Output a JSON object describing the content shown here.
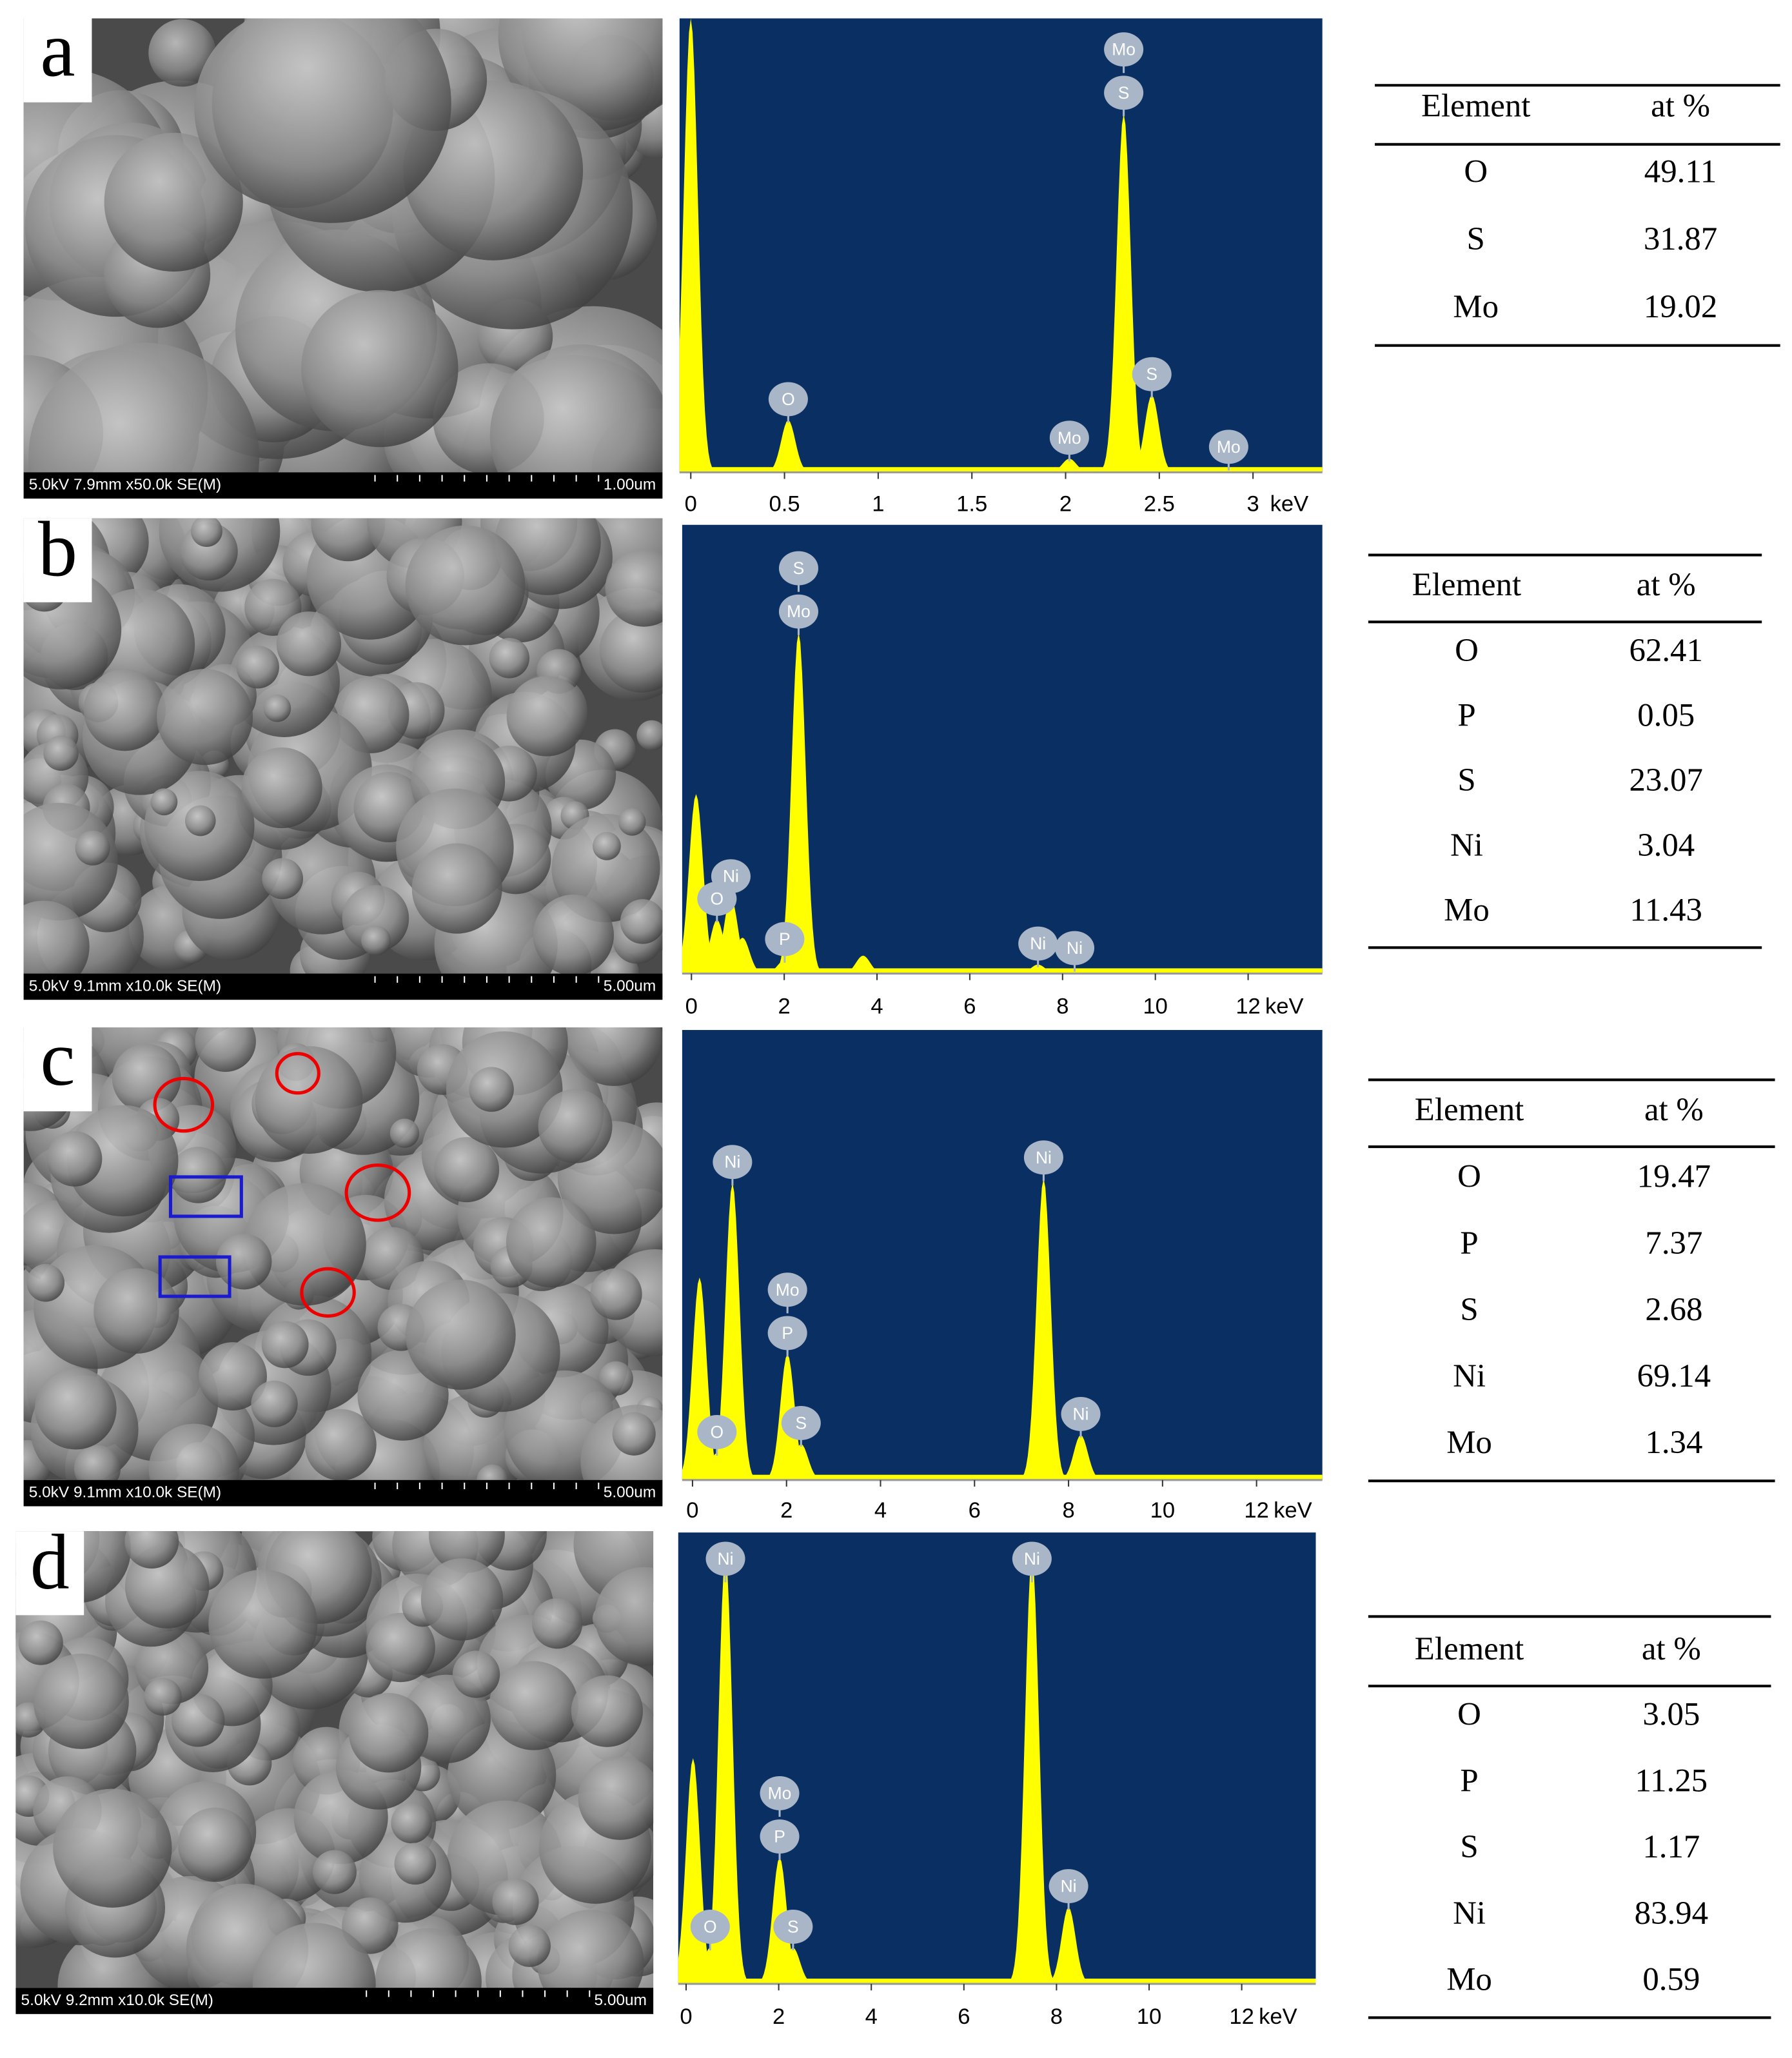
{
  "panels": [
    {
      "label": "a",
      "sem": {
        "info": "5.0kV 7.9mm x50.0k SE(M)",
        "scale": "1.00um"
      },
      "spectrum": {
        "type": "line",
        "xlim": [
          -0.06,
          3.37
        ],
        "ylim": [
          0,
          100
        ],
        "xticks": [
          0,
          0.5,
          1,
          1.5,
          2,
          2.5,
          3
        ],
        "x_unit": "keV",
        "peaks": [
          {
            "x": 0.0,
            "y": 100
          },
          {
            "x": 0.52,
            "y": 11.5,
            "labels": [
              "O"
            ]
          },
          {
            "x": 2.02,
            "y": 3,
            "labels": [
              "Mo"
            ]
          },
          {
            "x": 2.31,
            "y": 79,
            "labels": [
              "Mo",
              "S"
            ]
          },
          {
            "x": 2.46,
            "y": 17,
            "labels": [
              "S"
            ]
          },
          {
            "x": 2.87,
            "y": 1,
            "labels": [
              "Mo"
            ]
          }
        ]
      },
      "table": {
        "header": [
          "Element",
          "at %"
        ],
        "rows": [
          [
            "O",
            "49.11"
          ],
          [
            "S",
            "31.87"
          ],
          [
            "Mo",
            "19.02"
          ]
        ]
      }
    },
    {
      "label": "b",
      "sem": {
        "info": "5.0kV 9.1mm x10.0k SE(M)",
        "scale": "5.00um"
      },
      "spectrum": {
        "type": "line",
        "xlim": [
          -0.2,
          13.6
        ],
        "ylim": [
          0,
          100
        ],
        "xticks": [
          0,
          2,
          4,
          6,
          8,
          10,
          12
        ],
        "x_unit": "keV",
        "peaks": [
          {
            "x": 0.1,
            "y": 40
          },
          {
            "x": 0.55,
            "y": 12,
            "labels": [
              "O"
            ]
          },
          {
            "x": 0.85,
            "y": 17,
            "labels": [
              "Ni"
            ]
          },
          {
            "x": 1.1,
            "y": 8
          },
          {
            "x": 2.01,
            "y": 3,
            "labels": [
              "P"
            ]
          },
          {
            "x": 2.31,
            "y": 76,
            "labels": [
              "S",
              "Mo"
            ]
          },
          {
            "x": 3.7,
            "y": 4
          },
          {
            "x": 7.47,
            "y": 2,
            "labels": [
              "Ni"
            ]
          },
          {
            "x": 8.26,
            "y": 1,
            "labels": [
              "Ni"
            ]
          }
        ]
      },
      "table": {
        "header": [
          "Element",
          "at %"
        ],
        "rows": [
          [
            "O",
            "62.41"
          ],
          [
            "P",
            "0.05"
          ],
          [
            "S",
            "23.07"
          ],
          [
            "Ni",
            "3.04"
          ],
          [
            "Mo",
            "11.43"
          ]
        ]
      }
    },
    {
      "label": "c",
      "sem": {
        "info": "5.0kV 9.1mm x10.0k SE(M)",
        "scale": "5.00um"
      },
      "spectrum": {
        "type": "line",
        "xlim": [
          -0.22,
          13.4
        ],
        "ylim": [
          0,
          100
        ],
        "xticks": [
          0,
          2,
          4,
          6,
          8,
          10,
          12
        ],
        "x_unit": "keV",
        "peaks": [
          {
            "x": 0.15,
            "y": 45
          },
          {
            "x": 0.52,
            "y": 6,
            "labels": [
              "O"
            ]
          },
          {
            "x": 0.85,
            "y": 66,
            "labels": [
              "Ni"
            ]
          },
          {
            "x": 2.02,
            "y": 28,
            "labels": [
              "Mo",
              "P"
            ]
          },
          {
            "x": 2.31,
            "y": 8,
            "labels": [
              "S"
            ]
          },
          {
            "x": 7.47,
            "y": 67,
            "labels": [
              "Ni"
            ]
          },
          {
            "x": 8.26,
            "y": 10,
            "labels": [
              "Ni"
            ]
          }
        ]
      },
      "table": {
        "header": [
          "Element",
          "at %"
        ],
        "rows": [
          [
            "O",
            "19.47"
          ],
          [
            "P",
            "7.37"
          ],
          [
            "S",
            "2.68"
          ],
          [
            "Ni",
            "69.14"
          ],
          [
            "Mo",
            "1.34"
          ]
        ]
      }
    },
    {
      "label": "d",
      "sem": {
        "info": "5.0kV 9.2mm x10.0k SE(M)",
        "scale": "5.00um"
      },
      "spectrum": {
        "type": "line",
        "xlim": [
          -0.17,
          13.6
        ],
        "ylim": [
          0,
          100
        ],
        "xticks": [
          0,
          2,
          4,
          6,
          8,
          10,
          12
        ],
        "x_unit": "keV",
        "peaks": [
          {
            "x": 0.15,
            "y": 50
          },
          {
            "x": 0.52,
            "y": 8,
            "labels": [
              "O"
            ]
          },
          {
            "x": 0.85,
            "y": 95,
            "labels": [
              "Ni"
            ]
          },
          {
            "x": 2.02,
            "y": 28,
            "labels": [
              "Mo",
              "P"
            ]
          },
          {
            "x": 2.31,
            "y": 8,
            "labels": [
              "S"
            ]
          },
          {
            "x": 7.47,
            "y": 95,
            "labels": [
              "Ni"
            ]
          },
          {
            "x": 8.26,
            "y": 17,
            "labels": [
              "Ni"
            ]
          }
        ]
      },
      "table": {
        "header": [
          "Element",
          "at %"
        ],
        "rows": [
          [
            "O",
            "3.05"
          ],
          [
            "P",
            "11.25"
          ],
          [
            "S",
            "1.17"
          ],
          [
            "Ni",
            "83.94"
          ],
          [
            "Mo",
            "0.59"
          ]
        ]
      }
    }
  ]
}
